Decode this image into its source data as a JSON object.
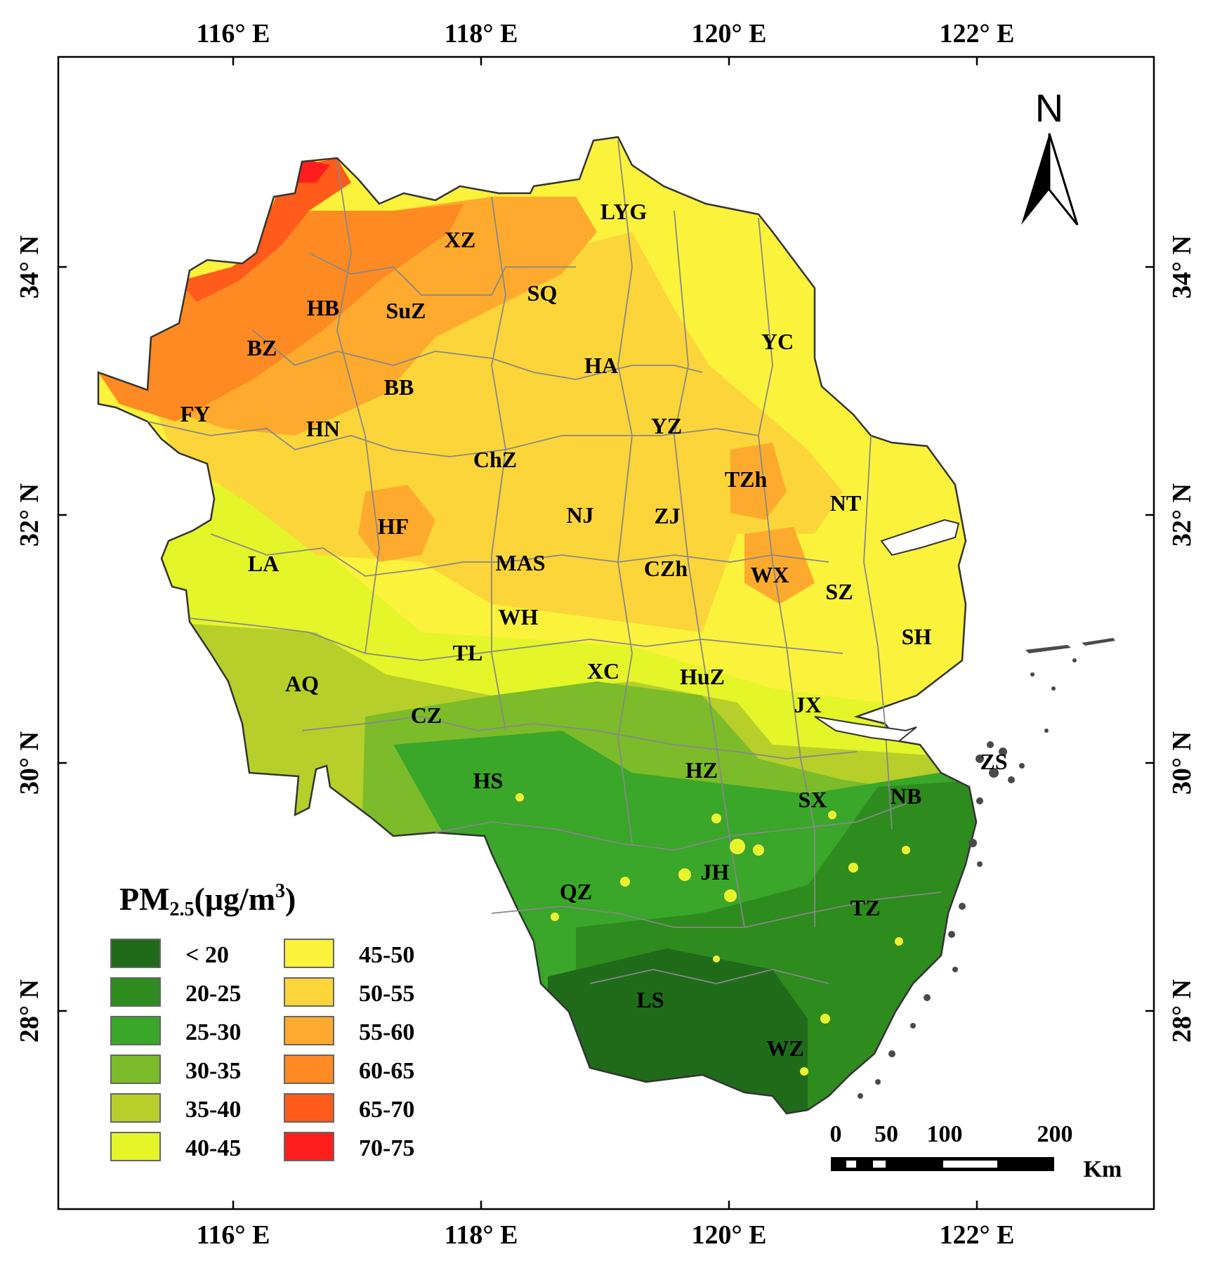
{
  "map": {
    "top_ticks": [
      "116° E",
      "118° E",
      "120° E",
      "122° E"
    ],
    "bottom_ticks": [
      "116° E",
      "118° E",
      "120° E",
      "122° E"
    ],
    "left_ticks": [
      "34° N",
      "32° N",
      "30° N",
      "28° N"
    ],
    "right_ticks": [
      "34° N",
      "32° N",
      "30° N",
      "28° N"
    ]
  },
  "north_arrow": {
    "label": "N"
  },
  "cities": [
    "LYG",
    "XZ",
    "SuZ",
    "HB",
    "SQ",
    "BZ",
    "YC",
    "HA",
    "BB",
    "FY",
    "HN",
    "YZ",
    "ChZ",
    "TZh",
    "NT",
    "NJ",
    "ZJ",
    "HF",
    "LA",
    "MAS",
    "CZh",
    "WX",
    "SZ",
    "WH",
    "SH",
    "TL",
    "XC",
    "HuZ",
    "AQ",
    "JX",
    "CZ",
    "ZS",
    "HZ",
    "HS",
    "NB",
    "SX",
    "JH",
    "QZ",
    "TZ",
    "LS",
    "WZ"
  ],
  "legend": {
    "title_main": "PM",
    "title_sub": "2.5",
    "title_unit": "(μg/m",
    "title_sup": "3",
    "title_end": ")",
    "items": [
      {
        "label": "< 20",
        "color": "#1f6b1a"
      },
      {
        "label": "20-25",
        "color": "#2e8b1e"
      },
      {
        "label": "25-30",
        "color": "#3aa62a"
      },
      {
        "label": "30-35",
        "color": "#7cbb2a"
      },
      {
        "label": "35-40",
        "color": "#b6cf2a"
      },
      {
        "label": "40-45",
        "color": "#e4f52a"
      },
      {
        "label": "45-50",
        "color": "#fbf23c"
      },
      {
        "label": "50-55",
        "color": "#fcd53a"
      },
      {
        "label": "55-60",
        "color": "#fdaa2e"
      },
      {
        "label": "60-65",
        "color": "#fd8a22"
      },
      {
        "label": "65-70",
        "color": "#ff5b1a"
      },
      {
        "label": "70-75",
        "color": "#ff1e1e"
      }
    ]
  },
  "scale_bar": {
    "labels": [
      "0",
      "50",
      "100",
      "200"
    ],
    "unit": "Km"
  }
}
